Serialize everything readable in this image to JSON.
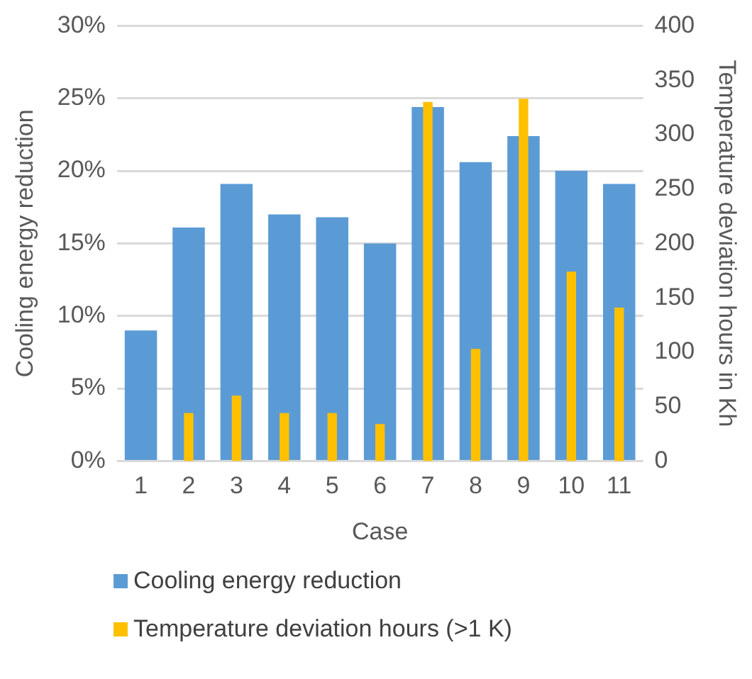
{
  "chart_data": {
    "type": "bar",
    "xlabel": "Case",
    "ylabel": "Cooling energy reduction",
    "y2label": "Temperature deviation hours in Kh",
    "categories": [
      "1",
      "2",
      "3",
      "4",
      "5",
      "6",
      "7",
      "8",
      "9",
      "10",
      "11"
    ],
    "series": [
      {
        "name": "Cooling energy reduction",
        "color": "#5b9bd5",
        "values": [
          9.0,
          16.1,
          19.1,
          17.0,
          16.8,
          15.0,
          24.4,
          20.6,
          22.4,
          20.0,
          19.1
        ]
      },
      {
        "name": "Temperature deviation hours (>1 K)",
        "color": "#ffc000",
        "axis": "y2",
        "values": [
          null,
          44,
          60,
          44,
          44,
          34,
          330,
          103,
          333,
          174,
          141
        ]
      }
    ],
    "ylim": [
      0,
      30
    ],
    "yticks": [
      {
        "value": 0,
        "label": "0%"
      },
      {
        "value": 5,
        "label": "5%"
      },
      {
        "value": 10,
        "label": "10%"
      },
      {
        "value": 15,
        "label": "15%"
      },
      {
        "value": 20,
        "label": "20%"
      },
      {
        "value": 25,
        "label": "25%"
      },
      {
        "value": 30,
        "label": "30%"
      }
    ],
    "y2lim": [
      0,
      400
    ],
    "y2ticks": [
      0,
      50,
      100,
      150,
      200,
      250,
      300,
      350,
      400
    ],
    "grid": "y",
    "legend": "bottom"
  }
}
